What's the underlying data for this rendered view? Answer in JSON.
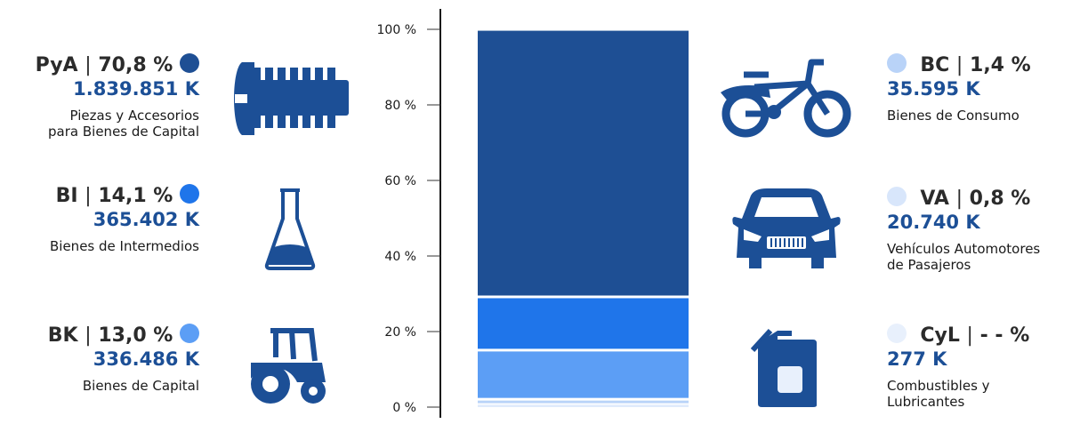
{
  "chart_data": {
    "type": "bar",
    "stacked": true,
    "ylim": [
      0,
      100
    ],
    "yticks": [
      "0 %",
      "20 %",
      "40 %",
      "60 %",
      "80 %",
      "100 %"
    ],
    "series": [
      {
        "code": "CyL",
        "pct_text": "- - %",
        "value_text": "277 K",
        "desc": [
          "Combustibles y",
          "Lubricantes"
        ],
        "share": 0.0,
        "color": "#e8f0fc",
        "icon": "fuel-can-icon"
      },
      {
        "code": "VA",
        "pct_text": "0,8 %",
        "value_text": "20.740 K",
        "desc": [
          "Vehículos Automotores",
          "de Pasajeros"
        ],
        "share": 0.8,
        "color": "#d8e6fb",
        "icon": "car-icon"
      },
      {
        "code": "BC",
        "pct_text": "1,4 %",
        "value_text": "35.595 K",
        "desc": [
          "Bienes de Consumo"
        ],
        "share": 1.4,
        "color": "#b9d3f8",
        "icon": "bicycle-icon"
      },
      {
        "code": "BK",
        "pct_text": "13,0 %",
        "value_text": "336.486 K",
        "desc": [
          "Bienes de Capital"
        ],
        "share": 13.0,
        "color": "#5c9ef5",
        "icon": "tractor-icon"
      },
      {
        "code": "BI",
        "pct_text": "14,1 %",
        "value_text": "365.402 K",
        "desc": [
          "Bienes de Intermedios"
        ],
        "share": 14.1,
        "color": "#1f75ea",
        "icon": "flask-icon"
      },
      {
        "code": "PyA",
        "pct_text": "70,8 %",
        "value_text": "1.839.851 K",
        "desc": [
          "Piezas y Accesorios",
          "para Bienes de Capital"
        ],
        "share": 70.8,
        "color": "#1e4f94",
        "icon": "bolt-icon"
      }
    ]
  }
}
